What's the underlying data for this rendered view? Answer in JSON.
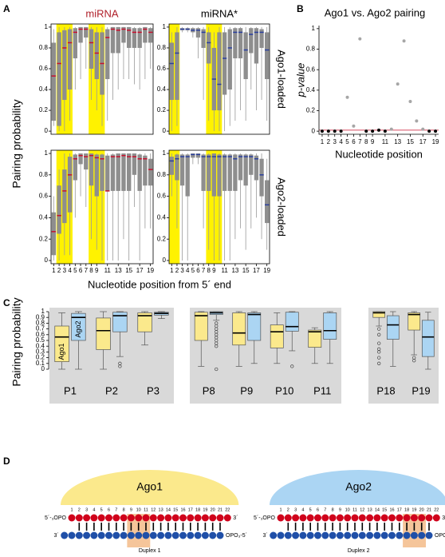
{
  "panel_labels": [
    "A",
    "B",
    "C",
    "D"
  ],
  "chart_data": [
    {
      "type": "box-grid",
      "columns": [
        "miRNA",
        "miRNA*"
      ],
      "column_colors": [
        "#b0202a",
        "#000000"
      ],
      "rows": [
        "Ago1-loaded",
        "Ago2-loaded"
      ],
      "median_colors": [
        "#c8102e",
        "#2a3f9e"
      ],
      "box_color": "#8e8e8e",
      "highlight_color": "#fff200",
      "ylabel": "Pairing probability",
      "xlabel": "Nucleotide position from 5´ end",
      "x": [
        1,
        2,
        3,
        4,
        5,
        6,
        7,
        8,
        9,
        10,
        11,
        12,
        13,
        14,
        15,
        16,
        17,
        18,
        19
      ],
      "xlim": [
        0.5,
        19.5
      ],
      "xticks": [
        1,
        2,
        3,
        4,
        5,
        6,
        7,
        8,
        9,
        11,
        13,
        15,
        17,
        19
      ],
      "ylim": [
        -0.03,
        1.03
      ],
      "yticks": [
        0,
        0.2,
        0.4,
        0.6,
        0.8,
        1
      ],
      "highlight": [
        [
          [
            2,
            4
          ],
          [
            8,
            10
          ]
        ],
        [
          [
            1,
            2
          ],
          [
            8,
            10
          ]
        ]
      ],
      "panels": [
        [
          [
            [
              0.05,
              0.1,
              0.53,
              0.85,
              0.98
            ],
            [
              0,
              0.05,
              0.65,
              0.95,
              1
            ],
            [
              0,
              0.3,
              0.8,
              0.97,
              1
            ],
            [
              0.1,
              0.4,
              0.85,
              0.98,
              1
            ],
            [
              0.4,
              0.7,
              0.95,
              0.99,
              1
            ],
            [
              0.5,
              0.85,
              0.98,
              1,
              1
            ],
            [
              0.6,
              0.9,
              0.98,
              1,
              1
            ],
            [
              0.3,
              0.6,
              0.85,
              0.98,
              1
            ],
            [
              0.2,
              0.5,
              0.75,
              0.95,
              1
            ],
            [
              0.05,
              0.35,
              0.65,
              0.95,
              1
            ],
            [
              0.1,
              0.5,
              0.9,
              0.98,
              1
            ],
            [
              0.3,
              0.75,
              0.98,
              1,
              1
            ],
            [
              0.4,
              0.75,
              0.97,
              1,
              1
            ],
            [
              0.5,
              0.85,
              0.98,
              1,
              1
            ],
            [
              0.5,
              0.8,
              0.97,
              1,
              1
            ],
            [
              0.45,
              0.8,
              0.95,
              0.99,
              1
            ],
            [
              0.4,
              0.8,
              0.95,
              0.99,
              1
            ],
            [
              0.5,
              0.85,
              0.98,
              1,
              1
            ],
            [
              0.6,
              0.85,
              0.95,
              0.99,
              1
            ]
          ],
          [
            [
              0,
              0.3,
              0.65,
              0.85,
              0.95
            ],
            [
              0.05,
              0.3,
              0.75,
              0.95,
              1
            ],
            [
              0.95,
              0.97,
              0.98,
              0.99,
              1
            ],
            [
              0.95,
              0.97,
              0.98,
              0.99,
              1
            ],
            [
              0.9,
              0.95,
              0.97,
              0.99,
              1
            ],
            [
              0.7,
              0.9,
              0.97,
              0.99,
              1
            ],
            [
              0.3,
              0.8,
              0.95,
              0.98,
              1
            ],
            [
              0.1,
              0.65,
              0.85,
              0.95,
              1
            ],
            [
              0,
              0.2,
              0.5,
              0.8,
              0.95
            ],
            [
              0,
              0.2,
              0.45,
              0.95,
              1
            ],
            [
              0,
              0.35,
              0.7,
              0.95,
              1
            ],
            [
              0.05,
              0.4,
              0.8,
              0.98,
              1
            ],
            [
              0.1,
              0.7,
              0.95,
              0.99,
              1
            ],
            [
              0.2,
              0.7,
              0.95,
              0.99,
              1
            ],
            [
              0.1,
              0.5,
              0.78,
              0.95,
              1
            ],
            [
              0.4,
              0.75,
              0.93,
              0.99,
              1
            ],
            [
              0.2,
              0.65,
              0.95,
              0.99,
              1
            ],
            [
              0.3,
              0.8,
              0.95,
              0.98,
              1
            ],
            [
              0.1,
              0.5,
              0.78,
              0.95,
              1
            ]
          ]
        ],
        [
          [
            [
              0,
              0.05,
              0.27,
              0.45,
              0.6
            ],
            [
              0,
              0.25,
              0.42,
              0.7,
              0.85
            ],
            [
              0.05,
              0.35,
              0.65,
              0.85,
              1
            ],
            [
              0.05,
              0.45,
              0.8,
              0.97,
              1
            ],
            [
              0.4,
              0.75,
              0.95,
              0.99,
              1
            ],
            [
              0.6,
              0.9,
              0.98,
              1,
              1
            ],
            [
              0.5,
              0.85,
              0.97,
              1,
              1
            ],
            [
              0.2,
              0.7,
              0.98,
              1,
              1
            ],
            [
              0.1,
              0.6,
              0.96,
              0.99,
              1
            ],
            [
              0,
              0.65,
              0.95,
              0.99,
              1
            ],
            [
              0,
              0.65,
              0.65,
              0.98,
              1
            ],
            [
              0,
              0.65,
              0.97,
              0.99,
              1
            ],
            [
              0,
              0.65,
              0.97,
              1,
              1
            ],
            [
              0.2,
              0.65,
              0.98,
              1,
              1
            ],
            [
              0,
              0.65,
              0.97,
              1,
              1
            ],
            [
              0.5,
              0.8,
              0.97,
              1,
              1
            ],
            [
              0,
              0.65,
              0.95,
              0.99,
              1
            ],
            [
              0.3,
              0.7,
              0.95,
              0.98,
              1
            ],
            [
              0.3,
              0.7,
              0.85,
              0.95,
              1
            ]
          ],
          [
            [
              0.6,
              0.8,
              0.93,
              0.97,
              1
            ],
            [
              0.3,
              0.75,
              0.95,
              0.99,
              1
            ],
            [
              0,
              0.7,
              0.97,
              0.99,
              1
            ],
            [
              0,
              0.6,
              0.97,
              0.99,
              1
            ],
            [
              0.9,
              0.96,
              0.99,
              1,
              1
            ],
            [
              0.9,
              0.96,
              0.99,
              1,
              1
            ],
            [
              0.3,
              0.65,
              0.97,
              0.99,
              1
            ],
            [
              0.1,
              0.65,
              0.97,
              0.99,
              1
            ],
            [
              0,
              0.6,
              0.97,
              1,
              1
            ],
            [
              0,
              0.6,
              0.97,
              0.99,
              1
            ],
            [
              0,
              0.65,
              0.97,
              0.99,
              1
            ],
            [
              0,
              0.65,
              0.97,
              0.99,
              1
            ],
            [
              0.2,
              0.65,
              0.95,
              0.99,
              1
            ],
            [
              0.3,
              0.75,
              0.97,
              0.99,
              1
            ],
            [
              0.1,
              0.7,
              0.97,
              0.99,
              1
            ],
            [
              0.3,
              0.8,
              0.97,
              0.99,
              1
            ],
            [
              0.4,
              0.75,
              0.95,
              0.98,
              1
            ],
            [
              0.2,
              0.6,
              0.8,
              0.95,
              1
            ],
            [
              0.1,
              0.35,
              0.52,
              0.75,
              0.95
            ]
          ]
        ]
      ]
    },
    {
      "type": "scatter",
      "title": "Ago1 vs. Ago2 pairing",
      "ylabel": "p-value",
      "xlabel": "Nucleotide position",
      "x": [
        1,
        2,
        3,
        4,
        5,
        6,
        7,
        8,
        9,
        10,
        11,
        12,
        13,
        14,
        15,
        16,
        17,
        18,
        19
      ],
      "values": [
        0,
        0,
        0,
        0,
        0.33,
        0.05,
        0.9,
        0,
        0,
        0.01,
        0,
        0.02,
        0.46,
        0.88,
        0.29,
        0.1,
        0.02,
        0,
        0
      ],
      "color": "#a6a6a6",
      "highlight_color": "#000000",
      "reference_line": 0.01,
      "reference_color": "#c8102e",
      "xlim": [
        0.5,
        19.5
      ],
      "xticks": [
        1,
        2,
        3,
        4,
        5,
        6,
        7,
        8,
        9,
        11,
        13,
        15,
        17,
        19
      ],
      "ylim": [
        -0.03,
        1.03
      ],
      "yticks": [
        0,
        0.2,
        0.4,
        0.6,
        0.8,
        1
      ]
    },
    {
      "type": "box",
      "ylabel": "Pairing probability",
      "categories": [
        "P1",
        "P2",
        "P3",
        "P8",
        "P9",
        "P10",
        "P11",
        "P18",
        "P19"
      ],
      "ylim": [
        0,
        1
      ],
      "yticks": [
        0,
        0.1,
        0.2,
        0.3,
        0.4,
        0.5,
        0.6,
        0.7,
        0.8,
        0.9,
        1
      ],
      "background": "#d9d9d9",
      "series": [
        {
          "name": "Ago1",
          "color": "#fbe98c",
          "boxes": [
            [
              0,
              0.13,
              0.56,
              0.75,
              0.98
            ],
            [
              0,
              0.34,
              0.67,
              0.89,
              1
            ],
            [
              0.42,
              0.65,
              0.93,
              0.98,
              1
            ],
            [
              0.05,
              0.5,
              0.93,
              0.99,
              1
            ],
            [
              0.05,
              0.42,
              0.63,
              0.98,
              1
            ],
            [
              0.1,
              0.37,
              0.65,
              0.77,
              0.98
            ],
            [
              0.1,
              0.38,
              0.65,
              0.68,
              0.72
            ],
            [
              0.75,
              0.9,
              0.98,
              1,
              1
            ],
            [
              0.25,
              0.68,
              0.95,
              0.98,
              1
            ]
          ],
          "outliers": [
            [],
            [],
            [],
            [],
            [],
            [],
            [],
            [
              0.7,
              0.6,
              0.45,
              0.35,
              0.3,
              0.2,
              0.1
            ],
            [
              0.2,
              0.15
            ]
          ]
        },
        {
          "name": "Ago2",
          "color": "#abd5f3",
          "boxes": [
            [
              0,
              0.5,
              0.9,
              0.97,
              1
            ],
            [
              0.22,
              0.65,
              0.93,
              0.99,
              1
            ],
            [
              0.88,
              0.94,
              0.97,
              0.99,
              1
            ],
            [
              0.85,
              0.95,
              0.98,
              1,
              1
            ],
            [
              0.1,
              0.5,
              0.95,
              0.98,
              1
            ],
            [
              0.32,
              0.66,
              0.74,
              0.99,
              1
            ],
            [
              0.1,
              0.52,
              0.67,
              0.98,
              1
            ],
            [
              0.05,
              0.52,
              0.77,
              0.93,
              1
            ],
            [
              0,
              0.22,
              0.56,
              0.85,
              0.99
            ]
          ],
          "outliers": [
            [],
            [
              0.1,
              0.05
            ],
            [],
            [
              0.8,
              0.75,
              0.7,
              0.65,
              0.6,
              0.55,
              0.5,
              0.45,
              0.4,
              0
            ],
            [],
            [
              0.05
            ],
            [],
            [],
            []
          ]
        }
      ]
    }
  ],
  "diagram": {
    "proteins": [
      "Ago1",
      "Ago2"
    ],
    "duplexes": [
      "Duplex 1",
      "Duplex 2"
    ],
    "positions": [
      1,
      2,
      3,
      4,
      5,
      6,
      7,
      8,
      9,
      10,
      11,
      12,
      13,
      14,
      15,
      16,
      17,
      18,
      19,
      20,
      21,
      22
    ],
    "top_5prime": "5´-₃OPO",
    "top_3prime": "3´",
    "bottom_3prime": "3´",
    "bottom_5prime": "OPO₃-5´"
  }
}
